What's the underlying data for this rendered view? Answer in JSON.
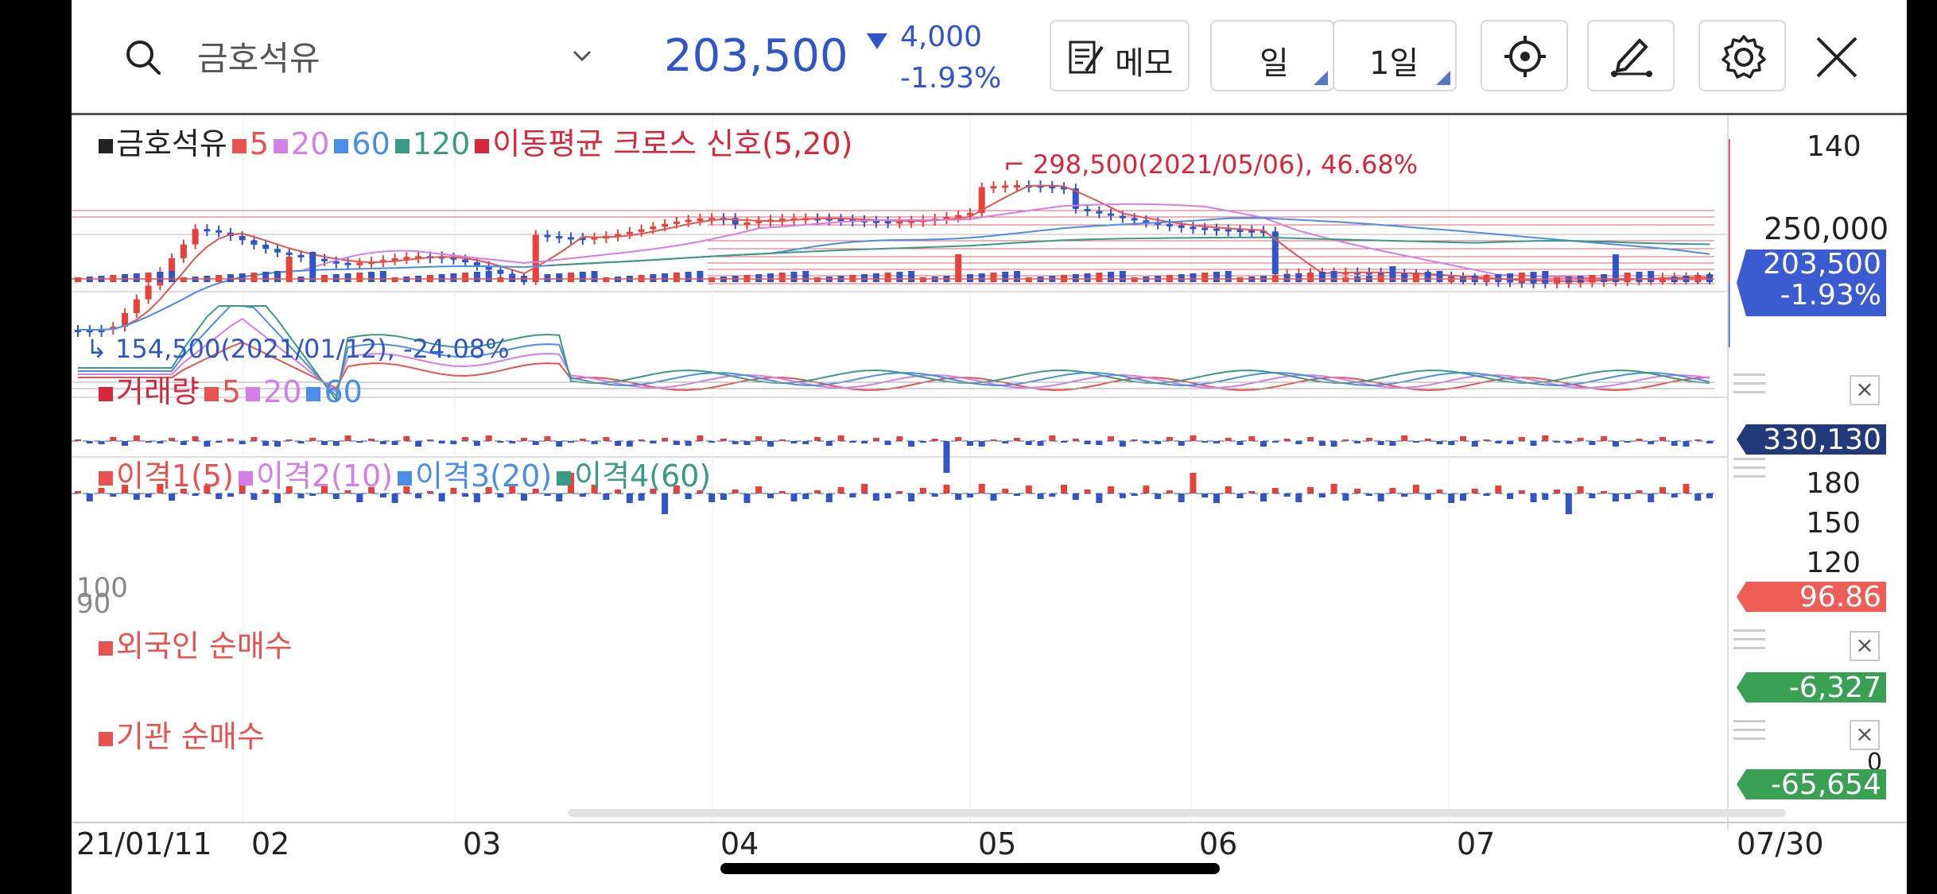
{
  "header": {
    "stock_name": "금호석유",
    "price": "203,500",
    "change": "4,000",
    "change_pct": "-1.93%",
    "memo_label": "메모",
    "period_type": "일",
    "period_value": "1일"
  },
  "price_panel": {
    "legend": [
      {
        "label": "금호석유",
        "color": "#222222"
      },
      {
        "label": "5",
        "color": "#e8534f"
      },
      {
        "label": "20",
        "color": "#d47ee8"
      },
      {
        "label": "60",
        "color": "#4b8ee8"
      },
      {
        "label": "120",
        "color": "#3a9a86"
      },
      {
        "label": "이동평균 크로스 신호(5,20)",
        "color": "#d9263a"
      }
    ],
    "high_annotation": "298,500(2021/05/06), 46.68%",
    "low_annotation": "154,500(2021/01/12), -24.08%",
    "axis_labels": [
      "140",
      "250,000"
    ],
    "current_tag_price": "203,500",
    "current_tag_pct": "-1.93%"
  },
  "volume_panel": {
    "legend": [
      {
        "label": "거래량",
        "color": "#d9263a"
      },
      {
        "label": "5",
        "color": "#e8534f"
      },
      {
        "label": "20",
        "color": "#d47ee8"
      },
      {
        "label": "60",
        "color": "#4b8ee8"
      }
    ],
    "current_tag": "330,130"
  },
  "disparity_panel": {
    "legend": [
      {
        "label": "이격1(5)",
        "color": "#e8534f"
      },
      {
        "label": "이격2(10)",
        "color": "#d47ee8"
      },
      {
        "label": "이격3(20)",
        "color": "#4b8ee8"
      },
      {
        "label": "이격4(60)",
        "color": "#3a9a86"
      }
    ],
    "axis_labels": [
      "180",
      "150",
      "120"
    ],
    "left_labels": [
      "100",
      "90"
    ],
    "current_tag": "96.86"
  },
  "foreign_panel": {
    "legend": [
      {
        "label": "외국인 순매수",
        "color": "#e8534f"
      }
    ],
    "current_tag": "-6,327"
  },
  "institution_panel": {
    "legend": [
      {
        "label": "기관 순매수",
        "color": "#e8534f"
      }
    ],
    "axis_label": "0",
    "current_tag": "-65,654"
  },
  "x_axis": {
    "labels": [
      "21/01/11",
      "02",
      "03",
      "04",
      "05",
      "06",
      "07"
    ],
    "end_label": "07/30"
  },
  "colors": {
    "up": "#e8413a",
    "down": "#2f55c9",
    "price_blue": "#2f55c9",
    "tag_blue": "#3b5cd0",
    "tag_navy": "#233a7a",
    "tag_red": "#ef5d57",
    "tag_green": "#3aa055"
  }
}
